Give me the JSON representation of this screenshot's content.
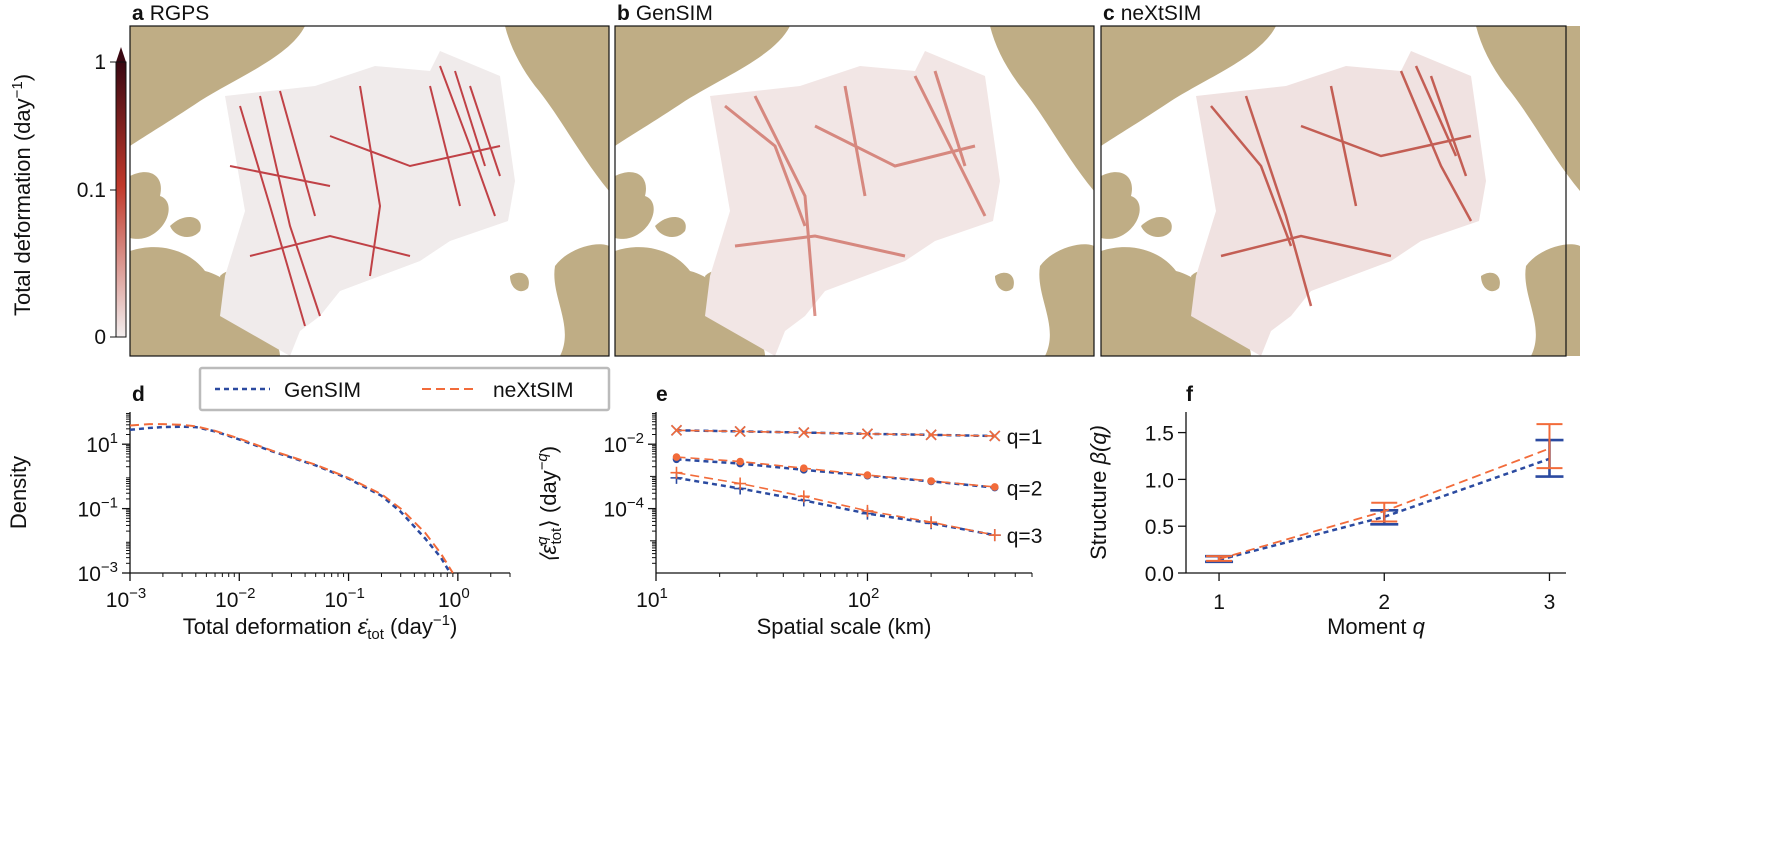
{
  "figure": {
    "colorbar": {
      "label": "Total deformation (day",
      "label_sup": "−1",
      "label_close": ")",
      "ticks": [
        "1",
        "0.1",
        "0"
      ],
      "colors": {
        "low": "#f3eeee",
        "mid": "#c0392b",
        "high": "#3a0812"
      }
    },
    "panels": {
      "a": {
        "letter": "a",
        "title": "RGPS"
      },
      "b": {
        "letter": "b",
        "title": "GenSIM"
      },
      "c": {
        "letter": "c",
        "title": "neXtSIM"
      },
      "d": {
        "letter": "d"
      },
      "e": {
        "letter": "e"
      },
      "f": {
        "letter": "f"
      }
    },
    "legend": {
      "gensim": "GenSIM",
      "nextsim": "neXtSIM"
    },
    "colors": {
      "gensim": "#2b4aa0",
      "nextsim": "#f26b3a",
      "land": "#bfad85",
      "ice_bg": "#f0ebeb"
    }
  },
  "chart_data": [
    {
      "id": "d",
      "type": "line",
      "xscale": "log",
      "yscale": "log",
      "xlim": [
        0.001,
        3
      ],
      "ylim": [
        0.001,
        100
      ],
      "xlabel": "Total deformation ",
      "xlabel_sym": "ε̇",
      "xlabel_sub": "tot",
      "xlabel_unit": " (day",
      "xlabel_sup": "−1",
      "xlabel_close": ")",
      "ylabel": "Density",
      "xticks": [
        {
          "v": 0.001,
          "b": "10",
          "e": "−3"
        },
        {
          "v": 0.01,
          "b": "10",
          "e": "−2"
        },
        {
          "v": 0.1,
          "b": "10",
          "e": "−1"
        },
        {
          "v": 1,
          "b": "10",
          "e": "0"
        }
      ],
      "yticks": [
        {
          "v": 0.001,
          "b": "10",
          "e": "−3"
        },
        {
          "v": 0.1,
          "b": "10",
          "e": "−1"
        },
        {
          "v": 10,
          "b": "10",
          "e": "1"
        }
      ],
      "series": [
        {
          "name": "GenSIM",
          "key": "gensim",
          "dash": "5,4",
          "x": [
            0.001,
            0.0015,
            0.002,
            0.003,
            0.004,
            0.006,
            0.01,
            0.02,
            0.05,
            0.1,
            0.2,
            0.3,
            0.5,
            0.7,
            0.85
          ],
          "y": [
            28,
            32,
            34,
            35,
            34,
            25,
            14,
            6,
            2.2,
            0.85,
            0.25,
            0.08,
            0.012,
            0.003,
            0.001
          ]
        },
        {
          "name": "neXtSIM",
          "key": "nextsim",
          "dash": "9,5",
          "x": [
            0.001,
            0.0015,
            0.002,
            0.003,
            0.004,
            0.006,
            0.01,
            0.02,
            0.05,
            0.1,
            0.2,
            0.3,
            0.5,
            0.7,
            0.9
          ],
          "y": [
            38,
            42,
            42,
            40,
            36,
            26,
            15,
            6.3,
            2.3,
            0.9,
            0.28,
            0.1,
            0.018,
            0.004,
            0.001
          ]
        }
      ]
    },
    {
      "id": "e",
      "type": "line",
      "xscale": "log",
      "yscale": "log",
      "xlim": [
        10,
        600
      ],
      "ylim": [
        1e-06,
        0.1
      ],
      "xlabel": "Spatial scale (km)",
      "ylabel": "⟨ε̇",
      "ylabel_sup": "q",
      "ylabel_sub": "tot",
      "ylabel_unit": "⟩ (day",
      "ylabel_unit_sup": "−q",
      "ylabel_close": ")",
      "xticks": [
        {
          "v": 10,
          "b": "10",
          "e": "1"
        },
        {
          "v": 100,
          "b": "10",
          "e": "2"
        }
      ],
      "yticks": [
        {
          "v": 0.0001,
          "b": "10",
          "e": "−4"
        },
        {
          "v": 0.01,
          "b": "10",
          "e": "−2"
        }
      ],
      "x": [
        12.5,
        25,
        50,
        100,
        200,
        400
      ],
      "series": [
        {
          "name": "GenSIM q=1",
          "key": "gensim",
          "marker": "x",
          "label": "q=1",
          "values": [
            0.027,
            0.025,
            0.023,
            0.021,
            0.0195,
            0.018
          ]
        },
        {
          "name": "neXtSIM q=1",
          "key": "nextsim",
          "marker": "x",
          "values": [
            0.027,
            0.025,
            0.023,
            0.021,
            0.0195,
            0.018
          ]
        },
        {
          "name": "GenSIM q=2",
          "key": "gensim",
          "marker": "o",
          "label": "q=2",
          "values": [
            0.0034,
            0.0025,
            0.0016,
            0.00105,
            0.0007,
            0.00045
          ]
        },
        {
          "name": "neXtSIM q=2",
          "key": "nextsim",
          "marker": "o",
          "values": [
            0.004,
            0.0029,
            0.0018,
            0.0011,
            0.00072,
            0.00047
          ]
        },
        {
          "name": "GenSIM q=3",
          "key": "gensim",
          "marker": "+",
          "label": "q=3",
          "values": [
            0.0009,
            0.00042,
            0.00018,
            7e-05,
            3.5e-05,
            1.5e-05
          ]
        },
        {
          "name": "neXtSIM q=3",
          "key": "nextsim",
          "marker": "+",
          "values": [
            0.0013,
            0.0006,
            0.00024,
            8.5e-05,
            3.8e-05,
            1.5e-05
          ]
        }
      ]
    },
    {
      "id": "f",
      "type": "line",
      "xlim": [
        0.8,
        3.1
      ],
      "ylim": [
        0,
        1.72
      ],
      "xlabel": "Moment ",
      "xlabel_var": "q",
      "ylabel": "Structure ",
      "ylabel_var": "β(q)",
      "xticks": [
        1,
        2,
        3
      ],
      "yticks": [
        {
          "v": 0,
          "t": "0.0"
        },
        {
          "v": 0.5,
          "t": "0.5"
        },
        {
          "v": 1.0,
          "t": "1.0"
        },
        {
          "v": 1.5,
          "t": "1.5"
        }
      ],
      "x": [
        1,
        2,
        3
      ],
      "series": [
        {
          "name": "GenSIM",
          "key": "gensim",
          "dash": "5,4",
          "values": [
            0.14,
            0.6,
            1.22
          ],
          "err_low": [
            0.12,
            0.52,
            1.03
          ],
          "err_high": [
            0.18,
            0.67,
            1.42
          ]
        },
        {
          "name": "neXtSIM",
          "key": "nextsim",
          "dash": "9,5",
          "values": [
            0.15,
            0.66,
            1.33
          ],
          "err_low": [
            0.13,
            0.55,
            1.12
          ],
          "err_high": [
            0.18,
            0.75,
            1.59
          ]
        }
      ]
    }
  ]
}
